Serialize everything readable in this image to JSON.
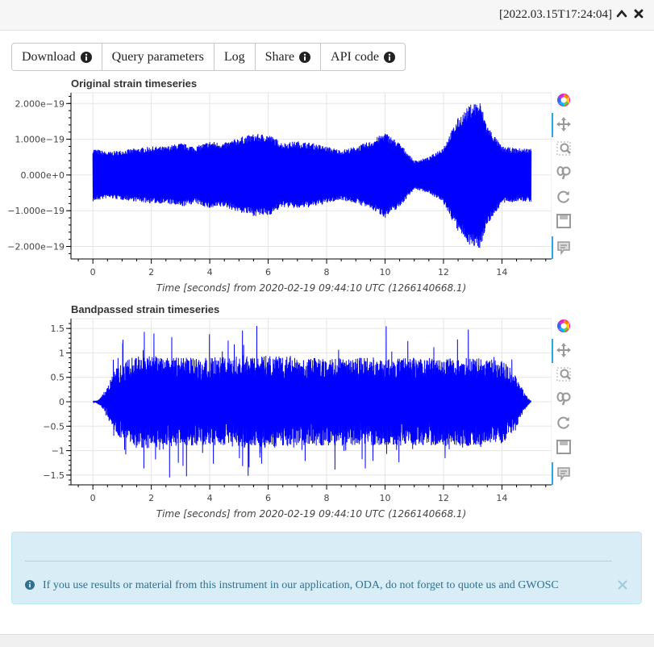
{
  "header": {
    "timestamp": "[2022.03.15T17:24:04]",
    "collapse_icon": "chevron-up-icon",
    "close_icon": "close-icon"
  },
  "buttons": [
    {
      "label": "Download",
      "info": true
    },
    {
      "label": "Query parameters",
      "info": false
    },
    {
      "label": "Log",
      "info": false
    },
    {
      "label": "Share",
      "info": true
    },
    {
      "label": "API code",
      "info": true
    }
  ],
  "plot_toolbar_icons": [
    "bokeh-logo-icon",
    "pan-icon",
    "box-zoom-icon",
    "wheel-zoom-icon",
    "reset-icon",
    "save-icon",
    "hover-icon"
  ],
  "chart_data": [
    {
      "type": "line",
      "title": "Original strain timeseries",
      "xlabel": "Time [seconds] from 2020-02-19 09:44:10 UTC (1266140668.1)",
      "ylabel": "",
      "xlim": [
        -0.75,
        15.7
      ],
      "ylim": [
        -2.35e-19,
        2.3e-19
      ],
      "x_ticks": [
        0,
        2,
        4,
        6,
        8,
        10,
        12,
        14
      ],
      "x_tick_labels": [
        "0",
        "2",
        "4",
        "6",
        "8",
        "10",
        "12",
        "14"
      ],
      "y_ticks": [
        2e-19,
        1e-19,
        0,
        -1e-19,
        -2e-19
      ],
      "y_tick_labels": [
        "2.000e−19",
        "1.000e−19",
        "0.000e+0",
        "−1.000e−19",
        "−2.000e−19"
      ],
      "grid": true,
      "color": "#0000ff",
      "series": [
        {
          "x": [
            0,
            0.5,
            1,
            1.5,
            2,
            2.5,
            3,
            3.5,
            4,
            4.5,
            5,
            5.5,
            6,
            6.5,
            7,
            7.5,
            8,
            8.5,
            9,
            9.5,
            10,
            10.5,
            11,
            11.5,
            12,
            12.5,
            13,
            13.25,
            13.5,
            14,
            14.5,
            15
          ],
          "envelope": [
            7.5e-20,
            6.5e-20,
            7e-20,
            7.5e-20,
            8e-20,
            8e-20,
            9e-20,
            8e-20,
            9.5e-20,
            9e-20,
            1.05e-19,
            1.15e-19,
            1.15e-19,
            9e-20,
            9.5e-20,
            9e-20,
            8e-20,
            7e-20,
            8e-20,
            9.5e-20,
            1.2e-19,
            9e-20,
            4e-20,
            5e-20,
            8e-20,
            1.6e-19,
            2.05e-19,
            2.05e-19,
            1.4e-19,
            8e-20,
            7.5e-20,
            7.5e-20
          ]
        }
      ]
    },
    {
      "type": "line",
      "title": "Bandpassed strain timeseries",
      "xlabel": "Time [seconds] from 2020-02-19 09:44:10 UTC (1266140668.1)",
      "ylabel": "",
      "xlim": [
        -0.75,
        15.7
      ],
      "ylim": [
        -1.7,
        1.7
      ],
      "x_ticks": [
        0,
        2,
        4,
        6,
        8,
        10,
        12,
        14
      ],
      "x_tick_labels": [
        "0",
        "2",
        "4",
        "6",
        "8",
        "10",
        "12",
        "14"
      ],
      "y_ticks": [
        1.5,
        1,
        0.5,
        0,
        -0.5,
        -1,
        -1.5
      ],
      "y_tick_labels": [
        "1.5",
        "1",
        "0.5",
        "0",
        "−0.5",
        "−1",
        "−1.5"
      ],
      "grid": true,
      "color": "#0000ff",
      "series": [
        {
          "x": [
            0,
            0.2,
            0.4,
            0.6,
            0.8,
            1.0,
            1.5,
            2,
            3,
            4,
            5,
            6,
            7,
            8,
            9,
            10,
            11,
            12,
            13,
            14,
            14.3,
            14.6,
            14.8,
            15
          ],
          "envelope": [
            0.0,
            0.05,
            0.2,
            0.45,
            0.7,
            0.8,
            0.95,
            0.95,
            0.9,
            0.9,
            0.95,
            0.95,
            0.9,
            0.9,
            0.9,
            0.9,
            0.9,
            0.9,
            0.9,
            0.85,
            0.7,
            0.4,
            0.15,
            0.0
          ]
        }
      ]
    }
  ],
  "notice": {
    "text": "If you use results or material from this instrument in our application, ODA, do not forget to quote us and GWOSC"
  }
}
